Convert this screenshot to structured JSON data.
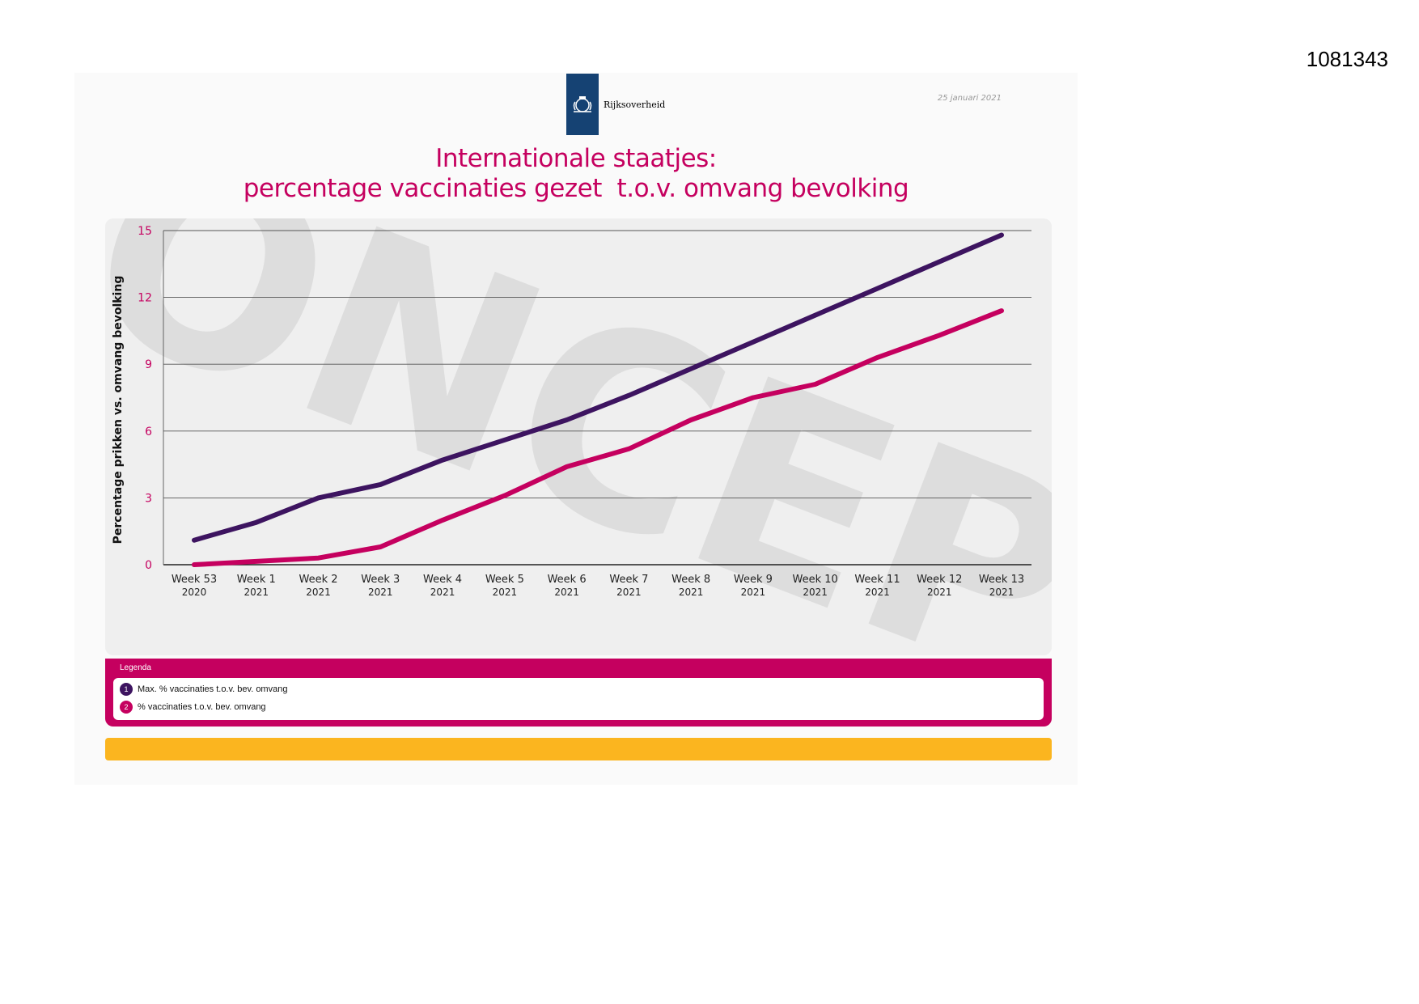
{
  "document_id": "1081343",
  "header": {
    "logo_text": "Rijksoverheid",
    "date": "25 januari 2021"
  },
  "title": {
    "line1": "Internationale staatjes:",
    "line2": "percentage vaccinaties gezet  t.o.v. omvang bevolking"
  },
  "watermark": "CONCEPT",
  "colors": {
    "brand": "#c5005f",
    "series1": "#3d1460",
    "series2": "#c5005f",
    "logo": "#154273",
    "footer_bar": "#fbb51f"
  },
  "legend": {
    "title": "Legenda",
    "items": [
      {
        "number": "1",
        "label": "Max. % vaccinaties t.o.v. bev. omvang"
      },
      {
        "number": "2",
        "label": "% vaccinaties t.o.v. bev. omvang"
      }
    ]
  },
  "chart_data": {
    "type": "line",
    "title": "",
    "xlabel": "",
    "ylabel": "Percentage prikken vs. omvang bevolking",
    "categories": [
      [
        "Week 53",
        "2020"
      ],
      [
        "Week 1",
        "2021"
      ],
      [
        "Week 2",
        "2021"
      ],
      [
        "Week 3",
        "2021"
      ],
      [
        "Week 4",
        "2021"
      ],
      [
        "Week 5",
        "2021"
      ],
      [
        "Week 6",
        "2021"
      ],
      [
        "Week 7",
        "2021"
      ],
      [
        "Week 8",
        "2021"
      ],
      [
        "Week 9",
        "2021"
      ],
      [
        "Week 10",
        "2021"
      ],
      [
        "Week 11",
        "2021"
      ],
      [
        "Week 12",
        "2021"
      ],
      [
        "Week 13",
        "2021"
      ]
    ],
    "ylim": [
      0,
      15
    ],
    "yticks": [
      0,
      3,
      6,
      9,
      12,
      15
    ],
    "grid": true,
    "series": [
      {
        "name": "Max. % vaccinaties t.o.v. bev. omvang",
        "color": "#3d1460",
        "values": [
          1.1,
          1.9,
          3.0,
          3.6,
          4.7,
          5.6,
          6.5,
          7.6,
          8.8,
          10.0,
          11.2,
          12.4,
          13.6,
          14.8
        ]
      },
      {
        "name": "% vaccinaties t.o.v. bev. omvang",
        "color": "#c5005f",
        "values": [
          0.0,
          0.15,
          0.3,
          0.8,
          2.0,
          3.1,
          4.4,
          5.2,
          6.5,
          7.5,
          8.1,
          9.3,
          10.3,
          11.4
        ]
      }
    ],
    "legend_position": "bottom"
  }
}
